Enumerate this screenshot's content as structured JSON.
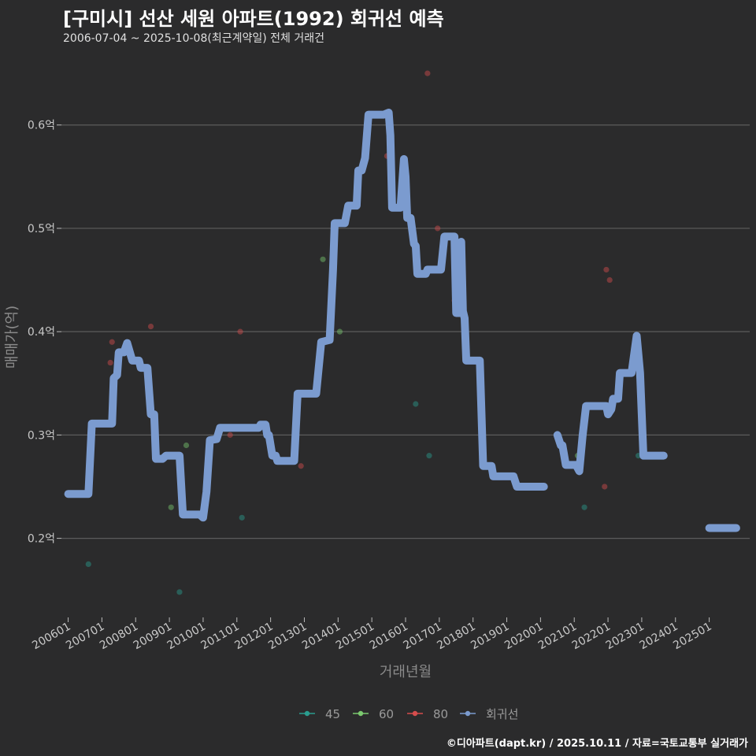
{
  "header": {
    "title": "[구미시] 선산 세원 아파트(1992) 회귀선 예측",
    "subtitle": "2006-07-04 ~ 2025-10-08(최근계약일) 전체 거래건"
  },
  "footer": {
    "credit": "©디아파트(dapt.kr) / 2025.10.11 / 자료=국토교통부 실거래가"
  },
  "chart_data": {
    "type": "line",
    "title": "[구미시] 선산 세원 아파트(1992) 회귀선 예측",
    "xlabel": "거래년월",
    "ylabel": "매매가(억)",
    "xlim": [
      2005.8,
      2026.2
    ],
    "ylim": [
      0.125,
      0.66
    ],
    "y_ticks": [
      0.2,
      0.3,
      0.4,
      0.5,
      0.6
    ],
    "y_tick_labels": [
      "0.2억",
      "0.3억",
      "0.4억",
      "0.5억",
      "0.6억"
    ],
    "x_ticks": [
      2006,
      2007,
      2008,
      2009,
      2010,
      2011,
      2012,
      2013,
      2014,
      2015,
      2016,
      2017,
      2018,
      2019,
      2020,
      2021,
      2022,
      2023,
      2024,
      2025
    ],
    "x_tick_labels": [
      "200601",
      "200701",
      "200801",
      "200901",
      "201001",
      "201101",
      "201201",
      "201301",
      "201401",
      "201501",
      "201601",
      "201701",
      "201801",
      "201901",
      "202001",
      "202101",
      "202201",
      "202301",
      "202401",
      "202501"
    ],
    "grid": true,
    "legend_position": "bottom",
    "legend": [
      "45",
      "60",
      "80",
      "회귀선"
    ],
    "colors": {
      "45": "#2a9d8f",
      "60": "#7bc96f",
      "80": "#d64d4d",
      "회귀선": "#7b9bcf"
    },
    "series": [
      {
        "name": "45",
        "kind": "scatter",
        "points": [
          [
            2006.6,
            0.175
          ],
          [
            2009.3,
            0.148
          ],
          [
            2011.15,
            0.22
          ],
          [
            2016.3,
            0.33
          ],
          [
            2016.7,
            0.28
          ],
          [
            2021.3,
            0.23
          ],
          [
            2022.9,
            0.28
          ]
        ]
      },
      {
        "name": "60",
        "kind": "scatter",
        "points": [
          [
            2009.05,
            0.23
          ],
          [
            2009.5,
            0.29
          ],
          [
            2013.55,
            0.47
          ],
          [
            2014.05,
            0.4
          ],
          [
            2021.1,
            0.28
          ]
        ]
      },
      {
        "name": "80",
        "kind": "scatter",
        "points": [
          [
            2007.3,
            0.39
          ],
          [
            2007.25,
            0.37
          ],
          [
            2008.45,
            0.405
          ],
          [
            2010.8,
            0.3
          ],
          [
            2011.1,
            0.4
          ],
          [
            2012.9,
            0.27
          ],
          [
            2015.45,
            0.57
          ],
          [
            2016.65,
            0.65
          ],
          [
            2016.95,
            0.5
          ],
          [
            2017.45,
            0.43
          ],
          [
            2021.9,
            0.25
          ],
          [
            2021.95,
            0.46
          ],
          [
            2022.05,
            0.45
          ]
        ]
      },
      {
        "name": "회귀선",
        "kind": "line",
        "segments": [
          [
            [
              2006.0,
              0.243
            ],
            [
              2006.6,
              0.243
            ],
            [
              2006.7,
              0.311
            ],
            [
              2007.3,
              0.311
            ],
            [
              2007.35,
              0.355
            ],
            [
              2007.45,
              0.358
            ],
            [
              2007.5,
              0.38
            ],
            [
              2007.65,
              0.38
            ],
            [
              2007.75,
              0.389
            ],
            [
              2007.9,
              0.372
            ],
            [
              2008.1,
              0.372
            ],
            [
              2008.15,
              0.365
            ],
            [
              2008.35,
              0.365
            ],
            [
              2008.45,
              0.32
            ],
            [
              2008.55,
              0.32
            ],
            [
              2008.6,
              0.277
            ],
            [
              2008.8,
              0.277
            ],
            [
              2008.9,
              0.28
            ],
            [
              2009.3,
              0.28
            ],
            [
              2009.4,
              0.223
            ],
            [
              2009.9,
              0.223
            ],
            [
              2010.0,
              0.22
            ],
            [
              2010.1,
              0.245
            ],
            [
              2010.2,
              0.295
            ],
            [
              2010.4,
              0.296
            ],
            [
              2010.5,
              0.307
            ],
            [
              2011.2,
              0.307
            ],
            [
              2011.65,
              0.307
            ],
            [
              2011.7,
              0.31
            ],
            [
              2011.85,
              0.31
            ],
            [
              2011.9,
              0.3
            ],
            [
              2011.95,
              0.3
            ],
            [
              2012.05,
              0.28
            ],
            [
              2012.15,
              0.28
            ],
            [
              2012.2,
              0.275
            ],
            [
              2012.7,
              0.275
            ],
            [
              2012.8,
              0.34
            ],
            [
              2013.35,
              0.34
            ],
            [
              2013.5,
              0.39
            ],
            [
              2013.75,
              0.392
            ],
            [
              2013.85,
              0.46
            ],
            [
              2013.9,
              0.505
            ],
            [
              2014.2,
              0.505
            ],
            [
              2014.3,
              0.522
            ],
            [
              2014.55,
              0.522
            ],
            [
              2014.6,
              0.556
            ],
            [
              2014.7,
              0.556
            ],
            [
              2014.8,
              0.568
            ],
            [
              2014.9,
              0.61
            ],
            [
              2015.35,
              0.61
            ],
            [
              2015.5,
              0.612
            ],
            [
              2015.55,
              0.59
            ],
            [
              2015.6,
              0.52
            ],
            [
              2015.85,
              0.52
            ],
            [
              2015.95,
              0.567
            ],
            [
              2016.0,
              0.55
            ],
            [
              2016.05,
              0.51
            ],
            [
              2016.15,
              0.51
            ],
            [
              2016.25,
              0.485
            ],
            [
              2016.3,
              0.483
            ],
            [
              2016.35,
              0.456
            ],
            [
              2016.6,
              0.456
            ],
            [
              2016.65,
              0.46
            ],
            [
              2017.05,
              0.46
            ],
            [
              2017.15,
              0.492
            ],
            [
              2017.45,
              0.492
            ],
            [
              2017.5,
              0.418
            ],
            [
              2017.6,
              0.418
            ],
            [
              2017.65,
              0.487
            ],
            [
              2017.7,
              0.42
            ],
            [
              2017.75,
              0.413
            ],
            [
              2017.8,
              0.372
            ],
            [
              2018.2,
              0.372
            ],
            [
              2018.3,
              0.27
            ],
            [
              2018.55,
              0.27
            ],
            [
              2018.6,
              0.26
            ],
            [
              2019.2,
              0.26
            ],
            [
              2019.3,
              0.25
            ],
            [
              2020.1,
              0.25
            ]
          ],
          [
            [
              2020.5,
              0.3
            ],
            [
              2020.6,
              0.29
            ],
            [
              2020.65,
              0.29
            ],
            [
              2020.75,
              0.271
            ],
            [
              2021.05,
              0.271
            ],
            [
              2021.15,
              0.265
            ],
            [
              2021.25,
              0.3
            ],
            [
              2021.35,
              0.328
            ],
            [
              2021.95,
              0.328
            ],
            [
              2022.0,
              0.32
            ],
            [
              2022.1,
              0.325
            ],
            [
              2022.15,
              0.335
            ],
            [
              2022.3,
              0.335
            ],
            [
              2022.35,
              0.36
            ],
            [
              2022.7,
              0.36
            ],
            [
              2022.85,
              0.396
            ],
            [
              2022.95,
              0.36
            ],
            [
              2023.05,
              0.28
            ],
            [
              2023.65,
              0.28
            ]
          ],
          [
            [
              2025.0,
              0.21
            ],
            [
              2025.8,
              0.21
            ]
          ]
        ]
      }
    ]
  }
}
